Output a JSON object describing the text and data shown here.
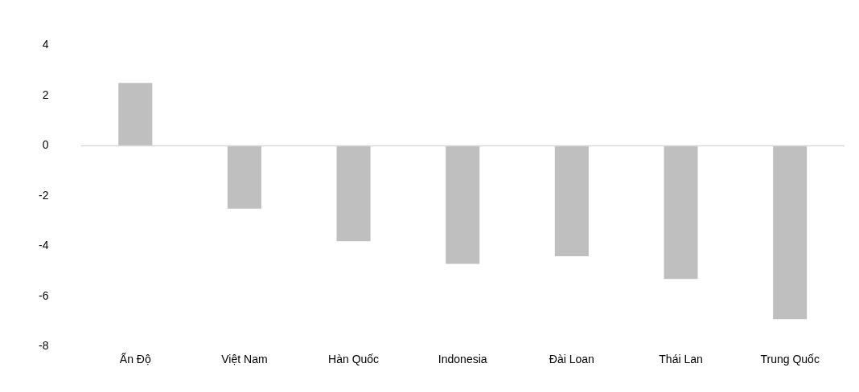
{
  "chart_data": {
    "type": "bar",
    "categories": [
      "Ấn Độ",
      "Việt Nam",
      "Hàn Quốc",
      "Indonesia",
      "Đài Loan",
      "Thái Lan",
      "Trung Quốc"
    ],
    "values": [
      2.5,
      -2.5,
      -3.8,
      -4.7,
      -4.4,
      -5.3,
      -6.9
    ],
    "color": "#bfbfbf",
    "ylim": [
      -8,
      4
    ],
    "yticks": [
      -8,
      -6,
      -4,
      -2,
      0,
      2,
      4
    ],
    "ref_lines": [
      {
        "axis": "y",
        "value": 0,
        "color": "#d9d9d9"
      }
    ],
    "grid": false,
    "legend": false
  }
}
